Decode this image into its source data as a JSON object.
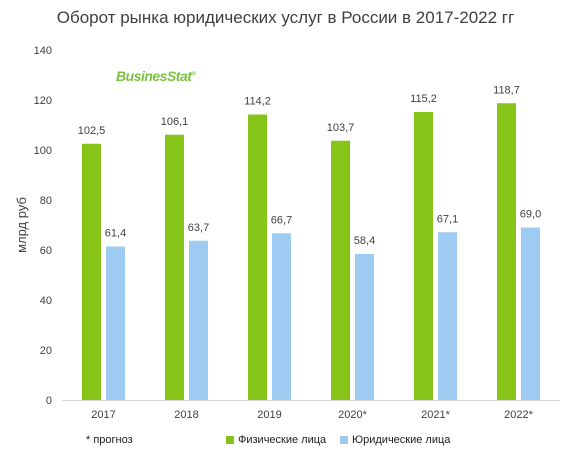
{
  "header": {
    "title": "Оборот рынка юридических услуг в России в 2017-2022 гг",
    "logo_text": "BusinesStat",
    "logo_mark": "®"
  },
  "footnote": "* прогноз",
  "colors": {
    "series_1": "#86c418",
    "series_2": "#9ecbf2",
    "text": "#404040"
  },
  "chart_data": {
    "type": "bar",
    "title": "Оборот рынка юридических услуг в России в 2017-2022 гг",
    "xlabel": "",
    "ylabel": "млрд руб",
    "ylim": [
      0,
      140
    ],
    "yticks": [
      0,
      20,
      40,
      60,
      80,
      100,
      120,
      140
    ],
    "grid": false,
    "legend_position": "bottom",
    "categories": [
      "2017",
      "2018",
      "2019",
      "2020*",
      "2021*",
      "2022*"
    ],
    "series": [
      {
        "name": "Физические лица",
        "values": [
          102.5,
          106.1,
          114.2,
          103.7,
          115.2,
          118.7
        ],
        "labels": [
          "102,5",
          "106,1",
          "114,2",
          "103,7",
          "115,2",
          "118,7"
        ]
      },
      {
        "name": "Юридические лица",
        "values": [
          61.4,
          63.7,
          66.7,
          58.4,
          67.1,
          69.0
        ],
        "labels": [
          "61,4",
          "63,7",
          "66,7",
          "58,4",
          "67,1",
          "69,0"
        ]
      }
    ]
  }
}
